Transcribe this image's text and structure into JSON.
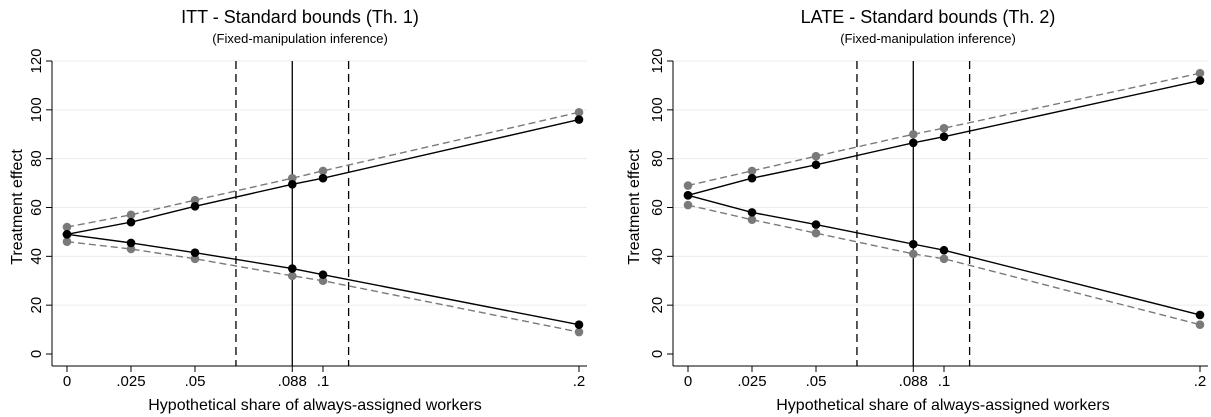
{
  "chart_data": [
    {
      "type": "line",
      "title": "ITT - Standard bounds (Th. 1)",
      "subtitle": "(Fixed-manipulation inference)",
      "xlabel": "Hypothetical share of always-assigned workers",
      "ylabel": "Treatment effect",
      "xlim": [
        0,
        0.2
      ],
      "ylim": [
        0,
        120
      ],
      "x_ticks": [
        {
          "value": 0,
          "label": "0"
        },
        {
          "value": 0.025,
          "label": ".025"
        },
        {
          "value": 0.05,
          "label": ".05"
        },
        {
          "value": 0.088,
          "label": ".088"
        },
        {
          "value": 0.1,
          "label": ".1"
        },
        {
          "value": 0.2,
          "label": ".2"
        }
      ],
      "y_ticks": [
        {
          "value": 0,
          "label": "0"
        },
        {
          "value": 20,
          "label": "20"
        },
        {
          "value": 40,
          "label": "40"
        },
        {
          "value": 60,
          "label": "60"
        },
        {
          "value": 80,
          "label": "80"
        },
        {
          "value": 100,
          "label": "100"
        },
        {
          "value": 120,
          "label": "120"
        }
      ],
      "grid": true,
      "reference_lines": {
        "solid": 0.088,
        "dashed": [
          0.066,
          0.11
        ]
      },
      "x": [
        0,
        0.025,
        0.05,
        0.088,
        0.1,
        0.2
      ],
      "series": [
        {
          "style": "solid",
          "color": "#000000",
          "values": [
            49,
            54,
            60.5,
            69.5,
            72,
            96
          ]
        },
        {
          "style": "solid",
          "color": "#000000",
          "values": [
            49,
            45.5,
            41.5,
            35,
            32.5,
            12
          ]
        },
        {
          "style": "dashed",
          "color": "#7a7a7a",
          "values": [
            52,
            57,
            63,
            72,
            75,
            99
          ]
        },
        {
          "style": "dashed",
          "color": "#7a7a7a",
          "values": [
            46,
            43,
            39,
            32,
            30,
            9
          ]
        }
      ]
    },
    {
      "type": "line",
      "title": "LATE - Standard bounds (Th. 2)",
      "subtitle": "(Fixed-manipulation inference)",
      "xlabel": "Hypothetical share of always-assigned workers",
      "ylabel": "Treatment effect",
      "xlim": [
        0,
        0.2
      ],
      "ylim": [
        0,
        120
      ],
      "x_ticks": [
        {
          "value": 0,
          "label": "0"
        },
        {
          "value": 0.025,
          "label": ".025"
        },
        {
          "value": 0.05,
          "label": ".05"
        },
        {
          "value": 0.088,
          "label": ".088"
        },
        {
          "value": 0.1,
          "label": ".1"
        },
        {
          "value": 0.2,
          "label": ".2"
        }
      ],
      "y_ticks": [
        {
          "value": 0,
          "label": "0"
        },
        {
          "value": 20,
          "label": "20"
        },
        {
          "value": 40,
          "label": "40"
        },
        {
          "value": 60,
          "label": "60"
        },
        {
          "value": 80,
          "label": "80"
        },
        {
          "value": 100,
          "label": "100"
        },
        {
          "value": 120,
          "label": "120"
        }
      ],
      "grid": true,
      "reference_lines": {
        "solid": 0.088,
        "dashed": [
          0.066,
          0.11
        ]
      },
      "x": [
        0,
        0.025,
        0.05,
        0.088,
        0.1,
        0.2
      ],
      "series": [
        {
          "style": "solid",
          "color": "#000000",
          "values": [
            65,
            72,
            77.5,
            86.5,
            89,
            112
          ]
        },
        {
          "style": "solid",
          "color": "#000000",
          "values": [
            65,
            58,
            53,
            45,
            42.5,
            16
          ]
        },
        {
          "style": "dashed",
          "color": "#7a7a7a",
          "values": [
            69,
            75,
            81,
            90,
            92.5,
            115
          ]
        },
        {
          "style": "dashed",
          "color": "#7a7a7a",
          "values": [
            61,
            55,
            49.5,
            41,
            39,
            12
          ]
        }
      ]
    }
  ]
}
